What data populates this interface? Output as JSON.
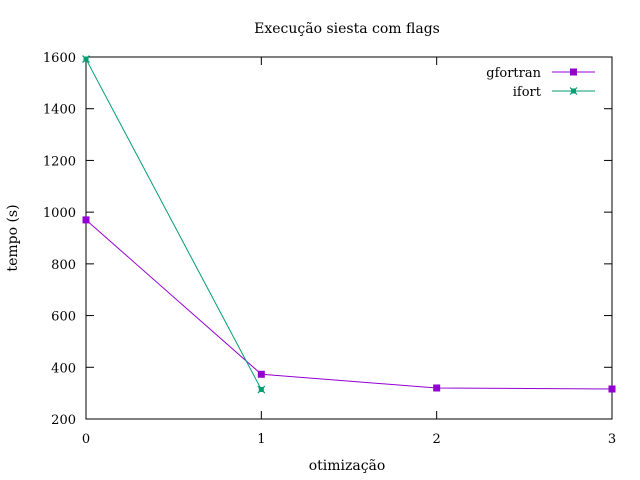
{
  "chart_data": {
    "type": "line",
    "title": "Execução siesta com flags",
    "xlabel": "otimização",
    "ylabel": "tempo (s)",
    "xlim": [
      0,
      3
    ],
    "ylim": [
      200,
      1600
    ],
    "xticks": [
      0,
      1,
      2,
      3
    ],
    "yticks": [
      200,
      400,
      600,
      800,
      1000,
      1200,
      1400,
      1600
    ],
    "grid": false,
    "legend_position": "top-right",
    "series": [
      {
        "name": "gfortran",
        "color": "#9400d3",
        "marker": "square",
        "x": [
          0,
          1,
          2,
          3
        ],
        "y": [
          970,
          373,
          320,
          316
        ]
      },
      {
        "name": "ifort",
        "color": "#009e73",
        "marker": "star",
        "x": [
          0,
          1
        ],
        "y": [
          1592,
          314
        ]
      }
    ]
  }
}
